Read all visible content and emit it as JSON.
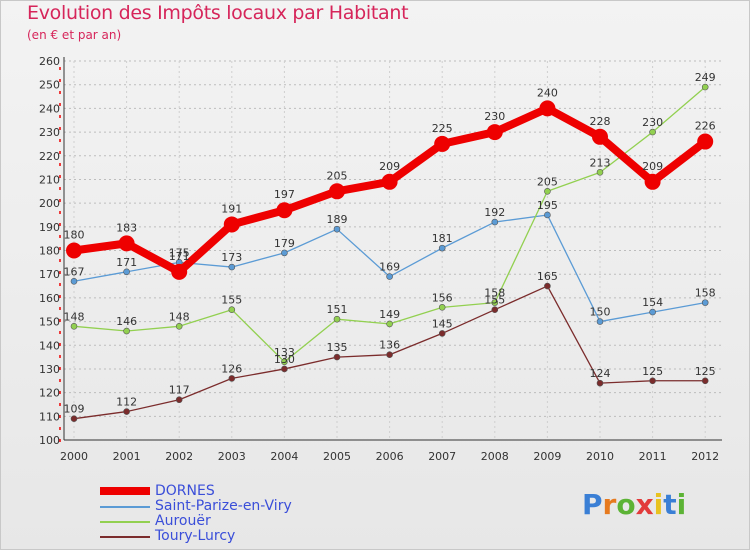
{
  "chart_data": {
    "type": "line",
    "title": "Evolution des Impôts locaux par Habitant",
    "subtitle": "(en € et par an)",
    "x": [
      "2000",
      "2001",
      "2002",
      "2003",
      "2004",
      "2005",
      "2006",
      "2007",
      "2008",
      "2009",
      "2010",
      "2011",
      "2012"
    ],
    "ylim": [
      100,
      260
    ],
    "yticks": [
      "100",
      "110",
      "120",
      "130",
      "140",
      "150",
      "160",
      "170",
      "180",
      "190",
      "200",
      "210",
      "220",
      "230",
      "240",
      "250",
      "260"
    ],
    "grid": "horizontal dashed",
    "legend_position": "bottom-left",
    "series": [
      {
        "name": "DORNES",
        "color": "#ee0000",
        "width": 8,
        "marker": 8,
        "values": [
          180,
          183,
          171,
          191,
          197,
          205,
          209,
          225,
          230,
          240,
          228,
          209,
          226
        ],
        "labels": [
          "180",
          "183",
          "171",
          "191",
          "197",
          "205",
          "209",
          "225",
          "230",
          "240",
          "228",
          "209",
          "226"
        ]
      },
      {
        "name": "Saint-Parize-en-Viry",
        "color": "#5b9bd5",
        "width": 1.3,
        "marker": 3,
        "values": [
          167,
          171,
          175,
          173,
          179,
          189,
          169,
          181,
          192,
          195,
          150,
          154,
          158
        ],
        "labels": [
          "167",
          "171",
          "175",
          "173",
          "179",
          "189",
          "169",
          "181",
          "192",
          "195",
          "150",
          "154",
          "158"
        ]
      },
      {
        "name": "Aurouër",
        "color": "#92d050",
        "width": 1.3,
        "marker": 3,
        "values": [
          148,
          146,
          148,
          155,
          133,
          151,
          149,
          156,
          158,
          205,
          213,
          230,
          249
        ],
        "labels": [
          "148",
          "146",
          "148",
          "155",
          "133",
          "151",
          "149",
          "156",
          "158",
          "205",
          "213",
          "230",
          "249"
        ]
      },
      {
        "name": "Toury-Lurcy",
        "color": "#7b2c2c",
        "width": 1.3,
        "marker": 3,
        "values": [
          109,
          112,
          117,
          126,
          130,
          135,
          136,
          145,
          155,
          165,
          124,
          125,
          125
        ],
        "labels": [
          "109",
          "112",
          "117",
          "126",
          "130",
          "135",
          "136",
          "145",
          "155",
          "165",
          "124",
          "125",
          "125"
        ]
      }
    ]
  },
  "brand": {
    "letters": [
      "P",
      "r",
      "o",
      "x",
      "i",
      "t",
      "i"
    ],
    "colors": [
      "#3a7fd5",
      "#e67a1f",
      "#5cb335",
      "#e23b3b",
      "#e8c21f",
      "#3a7fd5",
      "#5cb335"
    ]
  }
}
